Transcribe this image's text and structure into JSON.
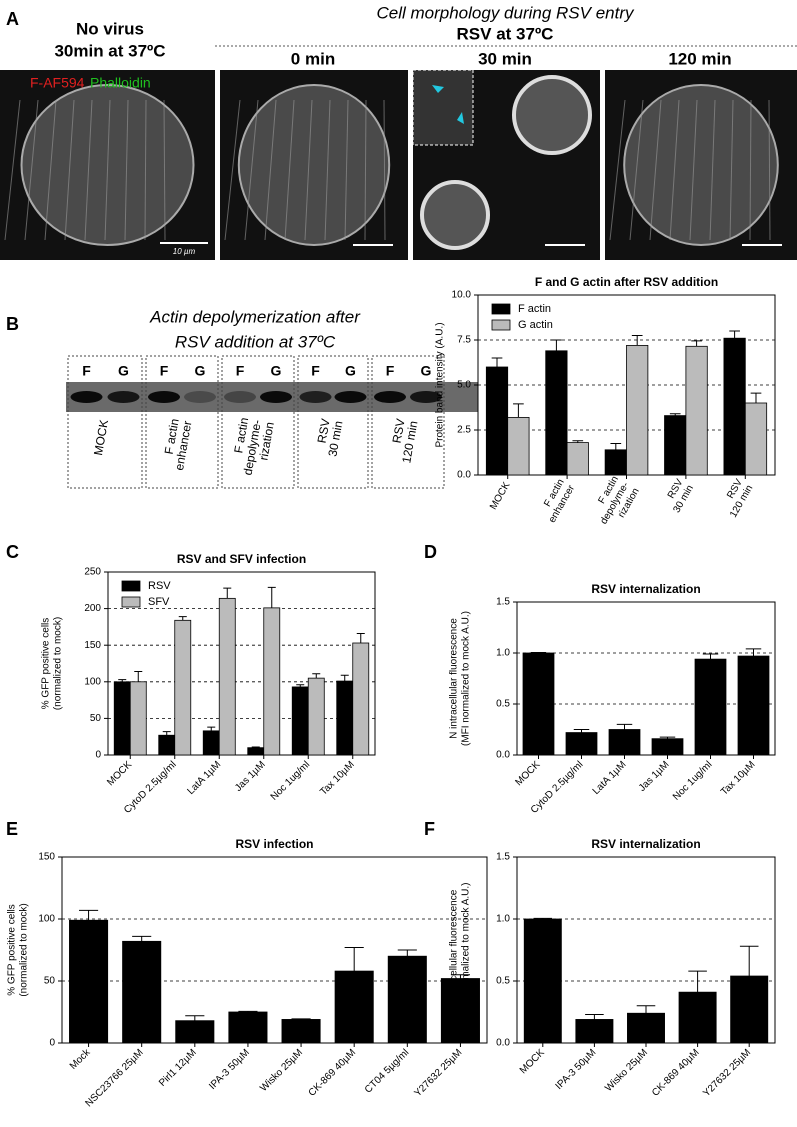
{
  "figure": {
    "panel_labels": [
      "A",
      "B",
      "C",
      "D",
      "E",
      "F"
    ],
    "panel_a": {
      "control_title": [
        "No virus",
        "30min at 37ºC"
      ],
      "heading": "Cell morphology during RSV entry",
      "subheading": "RSV at 37ºC",
      "timepoints": [
        "0 min",
        "30 min",
        "120 min"
      ],
      "stain_1": "F-AF594",
      "stain_2": "Phalloidin",
      "scale_bar": "10 µm"
    },
    "panel_b": {
      "title": [
        "Actin depolymerization after",
        "RSV addition at 37ºC"
      ],
      "lane_labels": [
        "F",
        "G"
      ],
      "groups": [
        [
          "MOCK"
        ],
        [
          "F actin",
          "enhancer"
        ],
        [
          "F actin",
          "depolyme-",
          "rization"
        ],
        [
          "RSV",
          "30 min"
        ],
        [
          "RSV",
          "120 min"
        ]
      ]
    }
  },
  "chart_data": [
    {
      "type": "bar",
      "title": "F and G actin after RSV addition",
      "ylabel": [
        "Protein band intensity (A.U.)"
      ],
      "categories": [
        [
          "MOCK"
        ],
        [
          "F actin",
          "enhancer"
        ],
        [
          "F actin",
          "depolyme-",
          "rization"
        ],
        [
          "RSV",
          "30 min"
        ],
        [
          "RSV",
          "120 min"
        ]
      ],
      "series": [
        {
          "name": "F actin",
          "color": "#000000",
          "values": [
            6.0,
            6.9,
            1.4,
            3.3,
            7.6
          ],
          "errors": [
            0.5,
            0.6,
            0.35,
            0.1,
            0.4
          ]
        },
        {
          "name": "G actin",
          "color": "#bbbbbb",
          "values": [
            3.2,
            1.8,
            7.2,
            7.15,
            4.0
          ],
          "errors": [
            0.75,
            0.1,
            0.55,
            0.3,
            0.55
          ]
        }
      ],
      "ylim": [
        0,
        10
      ],
      "yticks": [
        {
          "value": 0,
          "label": "0.0"
        },
        2.5,
        {
          "value": 5,
          "label": "5.0"
        },
        7.5,
        {
          "value": 10,
          "label": "10.0"
        }
      ],
      "grid": true,
      "legend": "upper left"
    },
    {
      "type": "bar",
      "title": "RSV and SFV infection",
      "ylabel": [
        "% GFP positive cells",
        "(normalized to mock)"
      ],
      "categories": [
        "MOCK",
        "CytoD 2.5µg/ml",
        "LatA 1µM",
        "Jas 1µM",
        "Noc 1ug/ml",
        "Tax 10µM"
      ],
      "series": [
        {
          "name": "RSV",
          "color": "#000000",
          "values": [
            100,
            27,
            33,
            10,
            93,
            101
          ],
          "errors": [
            3,
            5,
            5,
            1,
            3,
            8
          ]
        },
        {
          "name": "SFV",
          "color": "#bbbbbb",
          "values": [
            100,
            184,
            214,
            201,
            105,
            153
          ],
          "errors": [
            14,
            5,
            14,
            28,
            6,
            13
          ]
        }
      ],
      "ylim": [
        0,
        250
      ],
      "yticks": [
        0,
        50,
        100,
        150,
        200,
        250
      ],
      "grid": true,
      "legend": "upper left"
    },
    {
      "type": "bar",
      "title": "RSV internalization",
      "ylabel": [
        "N intracellular fluorescence",
        "(MFI normalized to mock A.U.)"
      ],
      "categories": [
        "MOCK",
        "CytoD 2.5µg/ml",
        "LatA 1µM",
        "Jas 1µM",
        "Noc 1ug/ml",
        "Tax 10µM"
      ],
      "values": [
        1.0,
        0.22,
        0.25,
        0.16,
        0.94,
        0.97
      ],
      "errors": [
        0.005,
        0.03,
        0.05,
        0.015,
        0.05,
        0.07
      ],
      "color": "#000000",
      "ylim": [
        0,
        1.5
      ],
      "yticks": [
        {
          "value": 0,
          "label": "0.0"
        },
        0.5,
        {
          "value": 1,
          "label": "1.0"
        },
        1.5
      ],
      "grid": true
    },
    {
      "type": "bar",
      "title": "RSV  infection",
      "ylabel": [
        "% GFP positive cells",
        "(normalized to mock)"
      ],
      "categories": [
        "Mock",
        "NSC23766 25µM",
        "Pirl1 12µM",
        "IPA-3 50µM",
        "Wisko 25µM",
        "CK-869 40µM",
        "CT04 5µg/ml",
        "Y27632 25µM"
      ],
      "values": [
        99,
        82,
        18,
        25,
        19,
        58,
        70,
        52
      ],
      "errors": [
        8,
        4,
        4,
        0.5,
        0.5,
        19,
        5,
        3
      ],
      "color": "#000000",
      "ylim": [
        0,
        150
      ],
      "yticks": [
        0,
        50,
        100,
        150
      ],
      "grid": true
    },
    {
      "type": "bar",
      "title": "RSV internalization",
      "ylabel": [
        "N intracellular fluorescence",
        "(MFI normalized to mock A.U.)"
      ],
      "categories": [
        "MOCK",
        "IPA-3 50µM",
        "Wisko 25µM",
        "CK-869 40µM",
        "Y27632 25µM"
      ],
      "values": [
        1.0,
        0.19,
        0.24,
        0.41,
        0.54
      ],
      "errors": [
        0.005,
        0.04,
        0.06,
        0.17,
        0.24
      ],
      "color": "#000000",
      "ylim": [
        0,
        1.5
      ],
      "yticks": [
        {
          "value": 0,
          "label": "0.0"
        },
        0.5,
        {
          "value": 1,
          "label": "1.0"
        },
        1.5
      ],
      "grid": true
    }
  ]
}
